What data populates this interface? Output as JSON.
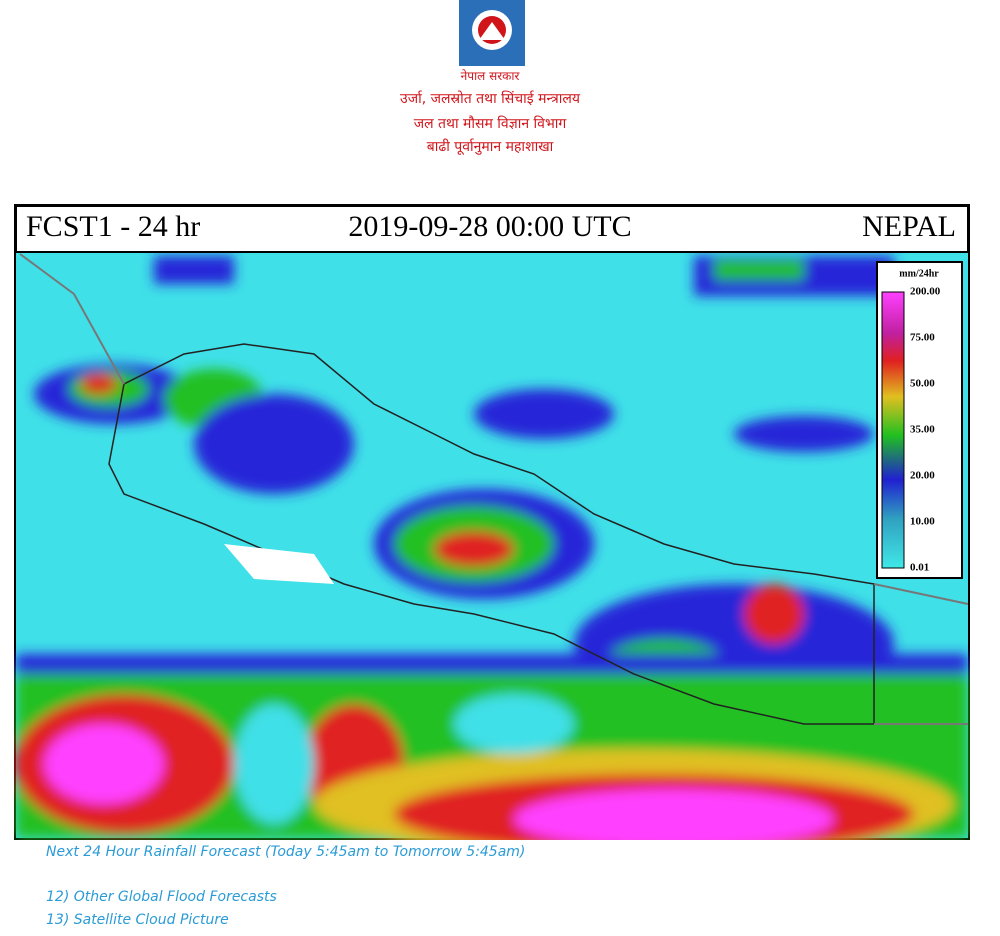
{
  "header": {
    "lines": [
      "नेपाल सरकार",
      "उर्जा, जलस्रोत तथा सिंचाई मन्त्रालय",
      "जल तथा मौसम विज्ञान विभाग",
      "बाढी पूर्वानुमान महाशाखा"
    ]
  },
  "map": {
    "title_left": "FCST1 - 24 hr",
    "title_center": "2019-09-28 00:00 UTC",
    "title_right": "NEPAL",
    "legend": {
      "title": "mm/24hr",
      "labels": [
        "200.00",
        "75.00",
        "50.00",
        "35.00",
        "20.00",
        "10.00",
        "0.01"
      ]
    }
  },
  "caption": "Next 24 Hour Rainfall Forecast (Today 5:45am to Tomorrow 5:45am)",
  "links": [
    "12) Other Global Flood Forecasts",
    "13) Satellite Cloud Picture"
  ]
}
